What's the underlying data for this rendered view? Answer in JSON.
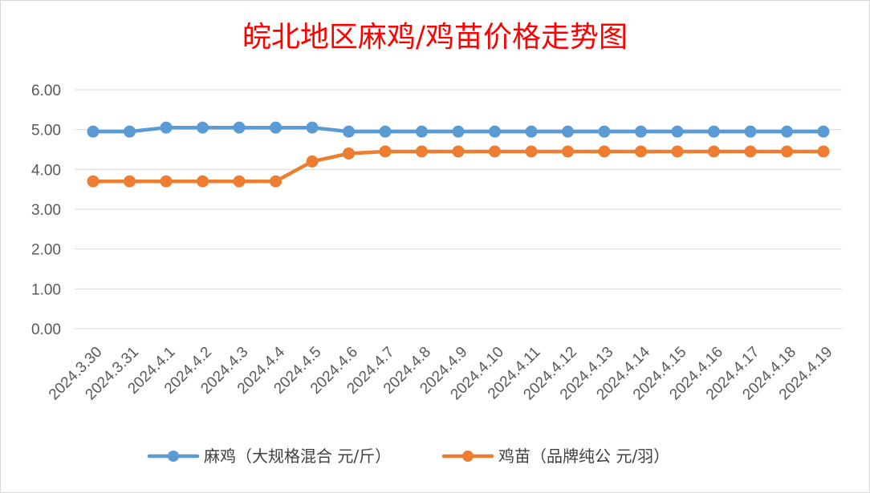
{
  "chart_data": {
    "type": "line",
    "title": "皖北地区麻鸡/鸡苗价格走势图",
    "title_color": "#ff0000",
    "categories": [
      "2024.3.30",
      "2024.3.31",
      "2024.4.1",
      "2024.4.2",
      "2024.4.3",
      "2024.4.4",
      "2024.4.5",
      "2024.4.6",
      "2024.4.7",
      "2024.4.8",
      "2024.4.9",
      "2024.4.10",
      "2024.4.11",
      "2024.4.12",
      "2024.4.13",
      "2024.4.14",
      "2024.4.15",
      "2024.4.16",
      "2024.4.17",
      "2024.4.18",
      "2024.4.19"
    ],
    "series": [
      {
        "name": "麻鸡（大规格混合 元/斤）",
        "color": "#5b9bd5",
        "values": [
          4.95,
          4.95,
          5.05,
          5.05,
          5.05,
          5.05,
          5.05,
          4.95,
          4.95,
          4.95,
          4.95,
          4.95,
          4.95,
          4.95,
          4.95,
          4.95,
          4.95,
          4.95,
          4.95,
          4.95,
          4.95
        ]
      },
      {
        "name": "鸡苗（品牌纯公 元/羽）",
        "color": "#ed7d31",
        "values": [
          3.7,
          3.7,
          3.7,
          3.7,
          3.7,
          3.7,
          4.2,
          4.4,
          4.45,
          4.45,
          4.45,
          4.45,
          4.45,
          4.45,
          4.45,
          4.45,
          4.45,
          4.45,
          4.45,
          4.45,
          4.45
        ]
      }
    ],
    "ylim": [
      0,
      6
    ],
    "yticks": [
      "0.00",
      "1.00",
      "2.00",
      "3.00",
      "4.00",
      "5.00",
      "6.00"
    ],
    "xlabel": "",
    "ylabel": "",
    "grid": true,
    "legend_position": "bottom"
  }
}
